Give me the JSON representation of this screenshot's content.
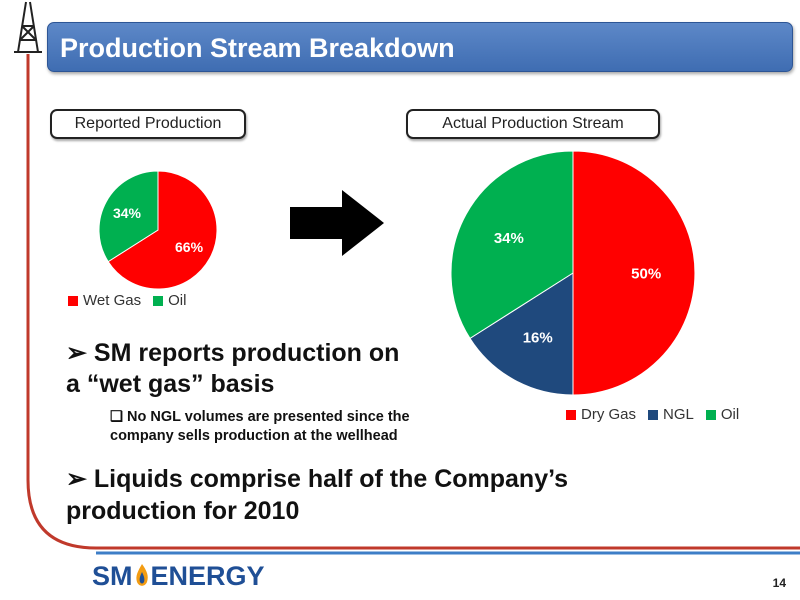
{
  "slide": {
    "title": "Production Stream Breakdown",
    "page_number": "14"
  },
  "boxes": {
    "reported": "Reported Production",
    "actual": "Actual Production Stream"
  },
  "bullets": {
    "main1_line1": "➢ SM reports production on",
    "main1_line2": "a “wet gas” basis",
    "sub1_line1": "❏ No NGL volumes are presented since the",
    "sub1_line2": "company sells production at the wellhead",
    "main2_line1": "➢ Liquids comprise half of the Company’s",
    "main2_line2": "production for 2010"
  },
  "logo": {
    "part1": "SM",
    "part2": "ENERGY"
  },
  "colors": {
    "red": "#ff0000",
    "green": "#00b050",
    "navy": "#1f497d",
    "title_blue": "#4f81bd"
  },
  "chart_data": [
    {
      "type": "pie",
      "categories": [
        "Wet Gas",
        "Oil"
      ],
      "values": [
        66,
        34
      ],
      "data_labels": [
        "66%",
        "34%"
      ],
      "colors": [
        "#ff0000",
        "#00b050"
      ],
      "legend": "bottom"
    },
    {
      "type": "pie",
      "categories": [
        "Dry Gas",
        "NGL",
        "Oil"
      ],
      "values": [
        50,
        16,
        34
      ],
      "data_labels": [
        "50%",
        "16%",
        "34%"
      ],
      "colors": [
        "#ff0000",
        "#1f497d",
        "#00b050"
      ],
      "legend": "bottom"
    }
  ]
}
